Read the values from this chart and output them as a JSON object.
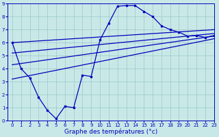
{
  "xlabel": "Graphe des températures (°c)",
  "xlim": [
    -0.5,
    23
  ],
  "ylim": [
    0,
    9
  ],
  "xticks": [
    0,
    1,
    2,
    3,
    4,
    5,
    6,
    7,
    8,
    9,
    10,
    11,
    12,
    13,
    14,
    15,
    16,
    17,
    18,
    19,
    20,
    21,
    22,
    23
  ],
  "yticks": [
    0,
    1,
    2,
    3,
    4,
    5,
    6,
    7,
    8,
    9
  ],
  "bg_color": "#c8e8e8",
  "line_color": "#0000bb",
  "main_x": [
    0,
    1,
    2,
    3,
    4,
    5,
    6,
    7,
    8,
    9,
    10,
    11,
    12,
    13,
    14,
    15,
    16,
    17,
    18,
    19,
    20,
    21,
    22,
    23
  ],
  "main_y": [
    6.0,
    4.0,
    3.3,
    1.8,
    0.8,
    0.15,
    1.1,
    1.0,
    3.5,
    3.4,
    6.2,
    7.5,
    8.8,
    8.85,
    8.85,
    8.4,
    8.0,
    7.3,
    7.0,
    6.8,
    6.5,
    6.55,
    6.4,
    6.55
  ],
  "tline1_x": [
    0,
    23
  ],
  "tline1_y": [
    6.0,
    7.0
  ],
  "tline2_x": [
    0,
    23
  ],
  "tline2_y": [
    5.2,
    6.7
  ],
  "tline3_x": [
    0,
    23
  ],
  "tline3_y": [
    3.2,
    6.3
  ],
  "tline4_x": [
    0,
    23
  ],
  "tline4_y": [
    4.3,
    6.5
  ]
}
